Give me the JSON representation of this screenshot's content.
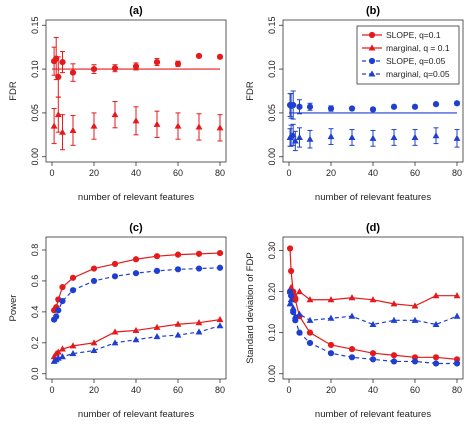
{
  "chart_data": [
    {
      "type": "scatter",
      "panel": "a",
      "title": "(a)",
      "xlabel": "number of relevant features",
      "ylabel": "FDR",
      "xlim": [
        0,
        80
      ],
      "ylim": [
        0,
        0.15
      ],
      "xticks": [
        "0",
        "20",
        "40",
        "60",
        "80"
      ],
      "yticks": [
        "0.00",
        "0.05",
        "0.10",
        "0.15"
      ],
      "hlines": [
        {
          "y": 0.1,
          "color": "#e41a1c"
        }
      ],
      "series": [
        {
          "legend_key": "slope1",
          "marker": "circle",
          "color": "#e41a1c",
          "x": [
            1,
            2,
            3,
            5,
            10,
            20,
            30,
            40,
            50,
            60,
            70,
            80
          ],
          "y": [
            0.109,
            0.112,
            0.091,
            0.108,
            0.096,
            0.1,
            0.101,
            0.103,
            0.108,
            0.106,
            0.115,
            0.114
          ],
          "err": [
            0.016,
            0.024,
            0.023,
            0.012,
            0.01,
            0.005,
            0.004,
            0.004,
            0.004,
            0.003,
            0.002,
            0.002
          ]
        },
        {
          "legend_key": "marg1",
          "marker": "triangle",
          "color": "#e41a1c",
          "x": [
            1,
            3,
            5,
            10,
            20,
            30,
            40,
            50,
            60,
            70,
            80
          ],
          "y": [
            0.035,
            0.048,
            0.028,
            0.03,
            0.035,
            0.048,
            0.041,
            0.037,
            0.035,
            0.034,
            0.033
          ],
          "err": [
            0.02,
            0.02,
            0.02,
            0.017,
            0.015,
            0.015,
            0.016,
            0.015,
            0.015,
            0.015,
            0.015
          ]
        }
      ]
    },
    {
      "type": "scatter",
      "panel": "b",
      "title": "(b)",
      "xlabel": "number of relevant features",
      "ylabel": "FDR",
      "xlim": [
        0,
        80
      ],
      "ylim": [
        0,
        0.15
      ],
      "xticks": [
        "0",
        "20",
        "40",
        "60",
        "80"
      ],
      "yticks": [
        "0.00",
        "0.05",
        "0.10",
        "0.15"
      ],
      "hlines": [
        {
          "y": 0.05,
          "color": "#1f3fd1"
        }
      ],
      "legend": {
        "position": "top-right",
        "items": [
          {
            "key": "slope1",
            "label": "SLOPE, q=0.1",
            "color": "#e41a1c",
            "marker": "circle",
            "dashed": false
          },
          {
            "key": "marg1",
            "label": "marginal, q = 0.1",
            "color": "#e41a1c",
            "marker": "triangle",
            "dashed": false
          },
          {
            "key": "slope05",
            "label": "SLOPE, q=0.05",
            "color": "#1f3fd1",
            "marker": "circle",
            "dashed": true
          },
          {
            "key": "marg05",
            "label": "marginal, q=0.05",
            "color": "#1f3fd1",
            "marker": "triangle",
            "dashed": true
          }
        ]
      },
      "series": [
        {
          "legend_key": "slope05",
          "marker": "circle",
          "color": "#1f3fd1",
          "x": [
            0.5,
            1,
            2,
            5,
            10,
            20,
            30,
            40,
            50,
            60,
            70,
            80
          ],
          "y": [
            0.059,
            0.058,
            0.059,
            0.057,
            0.057,
            0.055,
            0.055,
            0.054,
            0.057,
            0.057,
            0.06,
            0.061
          ],
          "err": [
            0.013,
            0.014,
            0.016,
            0.008,
            0.004,
            0.003,
            0.002,
            0.002,
            0.002,
            0.002,
            0.002,
            0.002
          ]
        },
        {
          "legend_key": "marg05",
          "marker": "triangle",
          "color": "#1f3fd1",
          "x": [
            0.5,
            1,
            2,
            3,
            5,
            10,
            20,
            30,
            40,
            50,
            60,
            70,
            80
          ],
          "y": [
            0.022,
            0.024,
            0.025,
            0.018,
            0.022,
            0.02,
            0.023,
            0.022,
            0.021,
            0.022,
            0.022,
            0.024,
            0.021
          ],
          "err": [
            0.01,
            0.012,
            0.012,
            0.011,
            0.011,
            0.01,
            0.009,
            0.009,
            0.009,
            0.009,
            0.009,
            0.009,
            0.01
          ]
        }
      ]
    },
    {
      "type": "line",
      "panel": "c",
      "title": "(c)",
      "xlabel": "number of relevant features",
      "ylabel": "Power",
      "xlim": [
        0,
        80
      ],
      "ylim": [
        0,
        0.85
      ],
      "xticks": [
        "0",
        "20",
        "40",
        "60",
        "80"
      ],
      "yticks": [
        "0.0",
        "0.2",
        "0.4",
        "0.6",
        "0.8"
      ],
      "series": [
        {
          "legend_key": "slope1",
          "marker": "circle",
          "color": "#e41a1c",
          "dashed": false,
          "x": [
            1,
            2,
            3,
            5,
            10,
            20,
            30,
            40,
            50,
            60,
            70,
            80
          ],
          "y": [
            0.41,
            0.43,
            0.48,
            0.56,
            0.62,
            0.68,
            0.71,
            0.74,
            0.76,
            0.77,
            0.775,
            0.78
          ]
        },
        {
          "legend_key": "slope05",
          "marker": "circle",
          "color": "#1f3fd1",
          "dashed": true,
          "x": [
            1,
            2,
            3,
            5,
            10,
            20,
            30,
            40,
            50,
            60,
            70,
            80
          ],
          "y": [
            0.35,
            0.37,
            0.41,
            0.47,
            0.54,
            0.6,
            0.63,
            0.65,
            0.665,
            0.675,
            0.68,
            0.685
          ]
        },
        {
          "legend_key": "marg1",
          "marker": "triangle",
          "color": "#e41a1c",
          "dashed": false,
          "x": [
            1,
            2,
            3,
            5,
            10,
            20,
            30,
            40,
            50,
            60,
            70,
            80
          ],
          "y": [
            0.11,
            0.13,
            0.14,
            0.16,
            0.18,
            0.2,
            0.27,
            0.28,
            0.3,
            0.32,
            0.33,
            0.35
          ]
        },
        {
          "legend_key": "marg05",
          "marker": "triangle",
          "color": "#1f3fd1",
          "dashed": true,
          "x": [
            1,
            2,
            3,
            5,
            10,
            20,
            30,
            40,
            50,
            60,
            70,
            80
          ],
          "y": [
            0.08,
            0.09,
            0.1,
            0.11,
            0.13,
            0.15,
            0.2,
            0.22,
            0.24,
            0.25,
            0.27,
            0.31
          ]
        }
      ]
    },
    {
      "type": "line",
      "panel": "d",
      "title": "(d)",
      "xlabel": "number of relevant features",
      "ylabel": "Standard deviation of FDP",
      "xlim": [
        0,
        80
      ],
      "ylim": [
        0,
        0.32
      ],
      "xticks": [
        "0",
        "20",
        "40",
        "60",
        "80"
      ],
      "yticks": [
        "0.00",
        "0.10",
        "0.20",
        "0.30"
      ],
      "series": [
        {
          "legend_key": "slope1",
          "marker": "circle",
          "color": "#e41a1c",
          "dashed": false,
          "x": [
            0.5,
            1,
            2,
            3,
            5,
            10,
            20,
            30,
            40,
            50,
            60,
            70,
            80
          ],
          "y": [
            0.305,
            0.25,
            0.2,
            0.18,
            0.14,
            0.1,
            0.07,
            0.06,
            0.05,
            0.045,
            0.04,
            0.04,
            0.035
          ]
        },
        {
          "legend_key": "marg1",
          "marker": "triangle",
          "color": "#e41a1c",
          "dashed": false,
          "x": [
            0.5,
            1,
            2,
            3,
            5,
            10,
            20,
            30,
            40,
            50,
            60,
            70,
            80
          ],
          "y": [
            0.2,
            0.21,
            0.2,
            0.19,
            0.2,
            0.18,
            0.18,
            0.185,
            0.18,
            0.17,
            0.165,
            0.19,
            0.19
          ]
        },
        {
          "legend_key": "slope05",
          "marker": "circle",
          "color": "#1f3fd1",
          "dashed": true,
          "x": [
            0.5,
            1,
            2,
            3,
            5,
            10,
            20,
            30,
            40,
            50,
            60,
            70,
            80
          ],
          "y": [
            0.2,
            0.19,
            0.15,
            0.13,
            0.1,
            0.075,
            0.05,
            0.04,
            0.035,
            0.03,
            0.03,
            0.025,
            0.025
          ]
        },
        {
          "legend_key": "marg05",
          "marker": "triangle",
          "color": "#1f3fd1",
          "dashed": true,
          "x": [
            0.5,
            1,
            2,
            3,
            5,
            10,
            20,
            30,
            40,
            50,
            60,
            70,
            80
          ],
          "y": [
            0.17,
            0.18,
            0.16,
            0.14,
            0.145,
            0.13,
            0.135,
            0.14,
            0.12,
            0.13,
            0.13,
            0.12,
            0.14
          ]
        }
      ]
    }
  ]
}
